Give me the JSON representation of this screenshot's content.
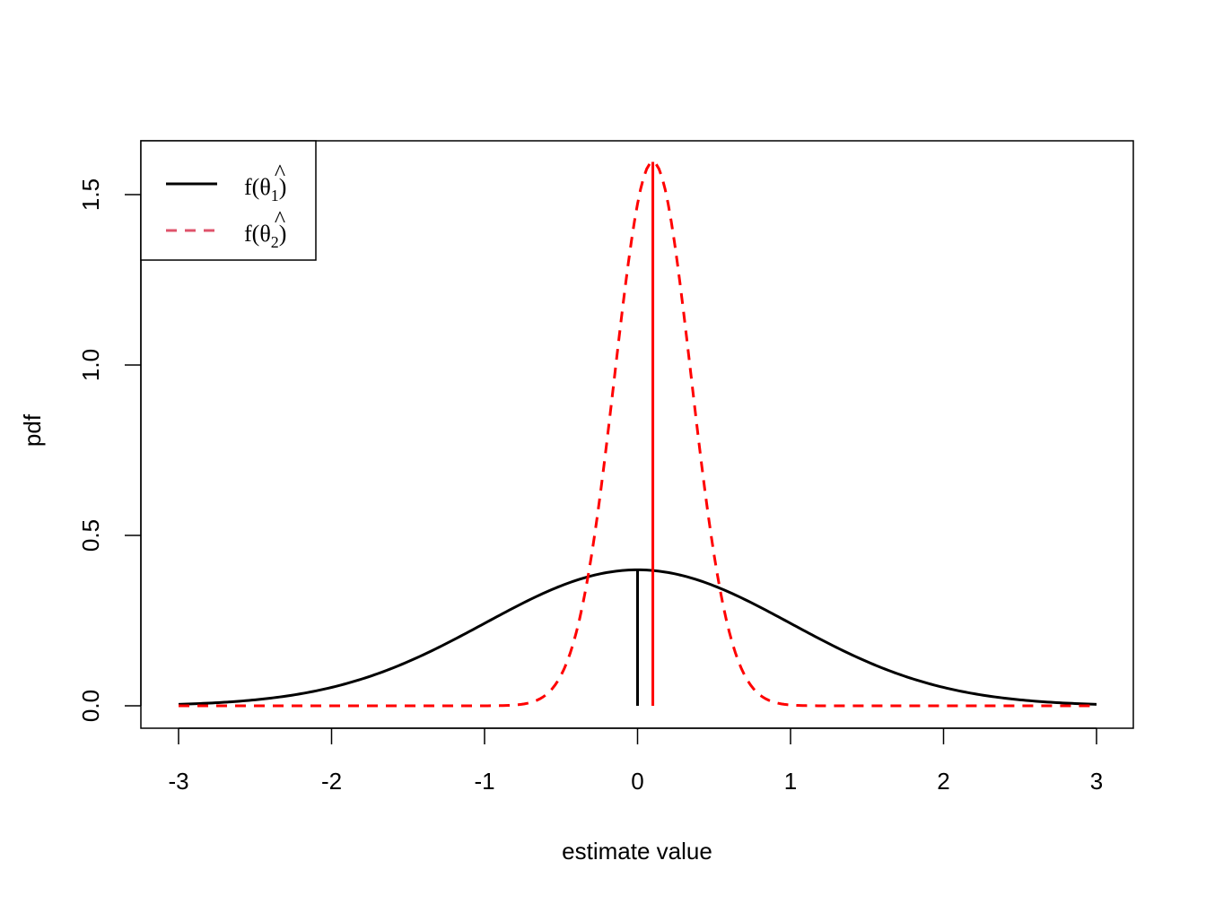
{
  "chart_data": {
    "type": "line",
    "title": "",
    "xlabel": "estimate value",
    "ylabel": "pdf",
    "xlim": [
      -3,
      3
    ],
    "ylim": [
      0,
      1.6
    ],
    "x_ticks": [
      -3,
      -2,
      -1,
      0,
      1,
      2,
      3
    ],
    "x_tick_labels": [
      "-3",
      "-2",
      "-1",
      "0",
      "1",
      "2",
      "3"
    ],
    "y_ticks": [
      0.0,
      0.5,
      1.0,
      1.5
    ],
    "y_tick_labels": [
      "0.0",
      "0.5",
      "1.0",
      "1.5"
    ],
    "grid": false,
    "legend_position": "top-left",
    "series": [
      {
        "name": "f(θ̂1)",
        "label_base": "f(θ",
        "label_sub": "1",
        "label_close": ")",
        "label_hat": "^",
        "color": "#000000",
        "line_style": "solid",
        "distribution": "normal",
        "mean": 0,
        "sd": 1,
        "vertical_line": {
          "x": 0,
          "y_top": 0.399
        }
      },
      {
        "name": "f(θ̂2)",
        "label_base": "f(θ",
        "label_sub": "2",
        "label_close": ")",
        "label_hat": "^",
        "color": "#ff0000",
        "legend_color": "#df536b",
        "line_style": "dashed",
        "distribution": "normal",
        "mean": 0.1,
        "sd": 0.25,
        "vertical_line": {
          "x": 0.1,
          "y_top": 1.596
        }
      }
    ]
  }
}
